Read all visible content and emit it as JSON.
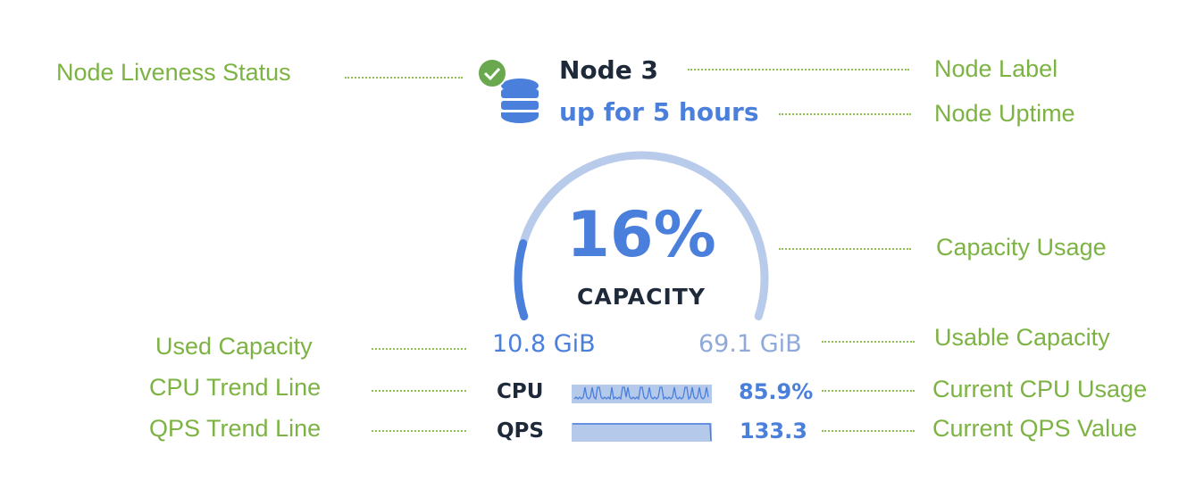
{
  "annotations": {
    "liveness": "Node Liveness Status",
    "label": "Node Label",
    "uptime": "Node Uptime",
    "capacity_usage": "Capacity Usage",
    "used_capacity": "Used Capacity",
    "usable_capacity": "Usable Capacity",
    "cpu_trend": "CPU Trend Line",
    "cpu_current": "Current CPU Usage",
    "qps_trend": "QPS Trend Line",
    "qps_current": "Current QPS Value"
  },
  "node": {
    "name": "Node 3",
    "uptime": "up for 5 hours",
    "status_icon": "check-circle-icon",
    "node_icon": "database-icon",
    "capacity_percent_label": "16%",
    "capacity_fraction": 0.16,
    "capacity_label": "CAPACITY",
    "used": "10.8 GiB",
    "usable": "69.1 GiB",
    "cpu_label": "CPU",
    "cpu_value": "85.9%",
    "qps_label": "QPS",
    "qps_value": "133.3"
  },
  "colors": {
    "accent": "#4a7fdc",
    "arc_track": "#b5c9ea",
    "annotation": "#7cb342",
    "status_ok": "#6aa84f"
  }
}
